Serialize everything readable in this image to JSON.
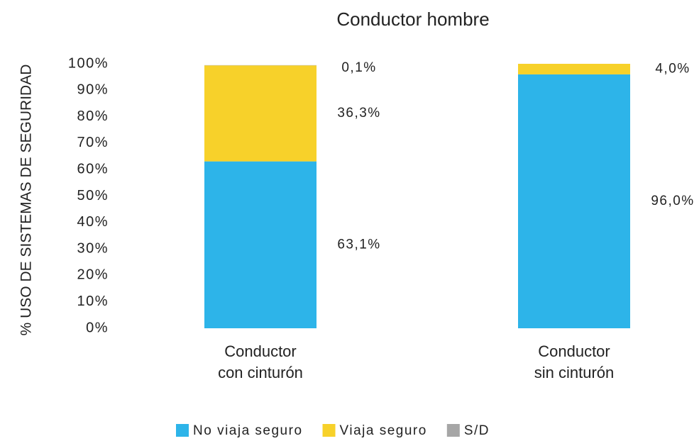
{
  "chart_data": {
    "type": "stacked_bar",
    "title": "Conductor hombre",
    "y_label": "% USO DE SISTEMAS DE SEGURIDAD",
    "categories": [
      [
        "Conductor",
        "con cinturón"
      ],
      [
        "Conductor",
        "sin cinturón"
      ]
    ],
    "series": [
      {
        "name": "No viaja seguro",
        "color": "#2db4e9",
        "values": [
          63.1,
          96.0
        ],
        "value_labels": [
          "63,1%",
          "96,0%"
        ]
      },
      {
        "name": "Viaja seguro",
        "color": "#f7d12a",
        "values": [
          36.3,
          4.0
        ],
        "value_labels": [
          "36,3%",
          "4,0%"
        ]
      },
      {
        "name": "S/D",
        "color": "#a6a6a6",
        "values": [
          0.1,
          null
        ],
        "value_labels": [
          "0,1%",
          null
        ]
      }
    ],
    "ylim": [
      0,
      100
    ],
    "yticks": [
      {
        "value": 0,
        "label": "0%"
      },
      {
        "value": 10,
        "label": "10%"
      },
      {
        "value": 20,
        "label": "20%"
      },
      {
        "value": 30,
        "label": "30%"
      },
      {
        "value": 40,
        "label": "40%"
      },
      {
        "value": 50,
        "label": "50%"
      },
      {
        "value": 60,
        "label": "60%"
      },
      {
        "value": 70,
        "label": "70%"
      },
      {
        "value": 80,
        "label": "80%"
      },
      {
        "value": 90,
        "label": "90%"
      },
      {
        "value": 100,
        "label": "100%"
      }
    ],
    "legend": "bottom"
  }
}
